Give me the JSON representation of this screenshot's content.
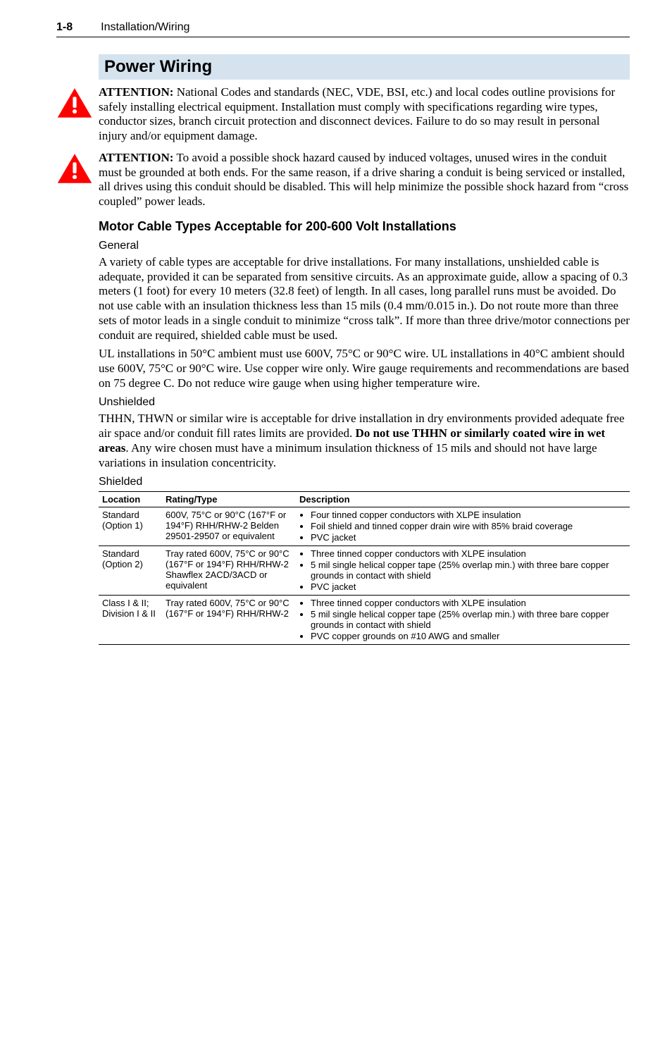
{
  "header": {
    "page_number": "1-8",
    "chapter": "Installation/Wiring"
  },
  "title": "Power Wiring",
  "attentions": [
    {
      "label": "ATTENTION:",
      "text": "National Codes and standards (NEC, VDE, BSI, etc.) and local codes outline provisions for safely installing electrical equipment. Installation must comply with specifications regarding wire types, conductor sizes, branch circuit protection and disconnect devices. Failure to do so may result in personal injury and/or equipment damage."
    },
    {
      "label": "ATTENTION:",
      "text": "To avoid a possible shock hazard caused by induced voltages, unused wires in the conduit must be grounded at both ends. For the same reason, if a drive sharing a conduit is being serviced or installed, all drives using this conduit should be disabled. This will help minimize the possible shock hazard from “cross coupled” power leads."
    }
  ],
  "subheading": "Motor Cable Types Acceptable for 200-600 Volt Installations",
  "sections": {
    "general": {
      "heading": "General",
      "p1": "A variety of cable types are acceptable for drive installations. For many installations, unshielded cable is adequate, provided it can be separated from sensitive circuits. As an approximate guide, allow a spacing of 0.3 meters (1 foot) for every 10 meters (32.8 feet) of length. In all cases, long parallel runs must be avoided. Do not use cable with an insulation thickness less than 15 mils (0.4 mm/0.015 in.). Do not route more than three sets of motor leads in a single conduit to minimize “cross talk”. If more than three drive/motor connections per conduit are required, shielded cable must be used.",
      "p2": "UL installations in 50°C ambient must use 600V, 75°C or 90°C wire. UL installations in 40°C ambient should use 600V, 75°C or 90°C wire. Use copper wire only. Wire gauge requirements and recommendations are based on 75 degree C. Do not reduce wire gauge when using higher temperature wire."
    },
    "unshielded": {
      "heading": "Unshielded",
      "p1_pre": "THHN, THWN or similar wire is acceptable for drive installation in dry environments provided adequate free air space and/or conduit fill rates limits are provided. ",
      "p1_bold": "Do not use THHN or similarly coated wire in wet areas",
      "p1_post": ". Any wire chosen must have a minimum insulation thickness of 15 mils and should not have large variations in insulation concentricity."
    },
    "shielded_heading": "Shielded"
  },
  "table": {
    "headers": {
      "loc": "Location",
      "type": "Rating/Type",
      "desc": "Description"
    },
    "rows": [
      {
        "loc": "Standard (Option 1)",
        "type": "600V, 75°C or 90°C (167°F or 194°F) RHH/RHW-2 Belden 29501-29507 or equivalent",
        "bullets": [
          "Four tinned copper conductors with XLPE insulation",
          "Foil shield and tinned copper drain wire with 85% braid coverage",
          "PVC jacket"
        ]
      },
      {
        "loc": "Standard (Option 2)",
        "type": "Tray rated 600V, 75°C or 90°C (167°F or 194°F) RHH/RHW-2 Shawflex 2ACD/3ACD or equivalent",
        "bullets": [
          "Three tinned copper conductors with XLPE insulation",
          "5 mil single helical copper tape (25% overlap min.) with three bare copper grounds in contact with shield",
          "PVC jacket"
        ]
      },
      {
        "loc": "Class I & II; Division I & II",
        "type": "Tray rated 600V, 75°C or 90°C (167°F or 194°F) RHH/RHW-2",
        "bullets": [
          "Three tinned copper conductors with XLPE insulation",
          "5 mil single helical copper tape (25% overlap min.) with three bare copper grounds in contact with shield",
          "PVC copper grounds on #10 AWG and smaller"
        ]
      }
    ]
  },
  "icon": {
    "triangle_fill": "#ff0000",
    "bang_fill": "#ffffff"
  }
}
